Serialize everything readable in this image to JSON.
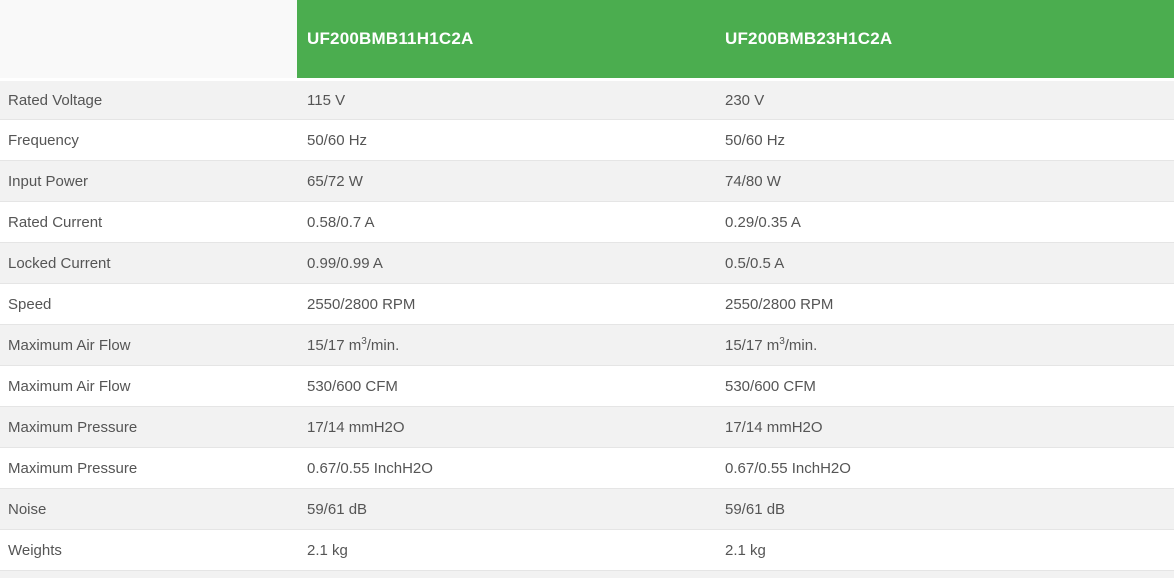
{
  "table": {
    "header": {
      "models": [
        "UF200BMB11H1C2A",
        "UF200BMB23H1C2A"
      ]
    },
    "rows": [
      {
        "label": "Rated Voltage",
        "values": [
          "115 V",
          "230 V"
        ]
      },
      {
        "label": "Frequency",
        "values": [
          "50/60 Hz",
          "50/60 Hz"
        ]
      },
      {
        "label": "Input Power",
        "values": [
          "65/72 W",
          "74/80 W"
        ]
      },
      {
        "label": "Rated Current",
        "values": [
          "0.58/0.7 A",
          "0.29/0.35 A"
        ]
      },
      {
        "label": "Locked Current",
        "values": [
          "0.99/0.99 A",
          "0.5/0.5 A"
        ]
      },
      {
        "label": "Speed",
        "values": [
          "2550/2800 RPM",
          "2550/2800 RPM"
        ]
      },
      {
        "label": "Maximum Air Flow",
        "value_parts": {
          "pre": "15/17 m",
          "sup": "3",
          "suffix": "/min."
        }
      },
      {
        "label": "Maximum Air Flow",
        "values": [
          "530/600 CFM",
          "530/600 CFM"
        ]
      },
      {
        "label": "Maximum Pressure",
        "values": [
          "17/14 mmH2O",
          "17/14 mmH2O"
        ]
      },
      {
        "label": "Maximum Pressure",
        "values": [
          "0.67/0.55 InchH2O",
          "0.67/0.55 InchH2O"
        ]
      },
      {
        "label": "Noise",
        "values": [
          "59/61 dB",
          "59/61 dB"
        ]
      },
      {
        "label": "Weights",
        "values": [
          "2.1 kg",
          "2.1 kg"
        ]
      }
    ]
  },
  "colors": {
    "header_green": "#4bad4f",
    "header_text": "#ffffff",
    "corner_bg": "#f9f9f9",
    "row_stripe": "#f2f2f2",
    "row_white": "#ffffff",
    "body_text": "#555555",
    "row_border": "#e5e5e5"
  }
}
